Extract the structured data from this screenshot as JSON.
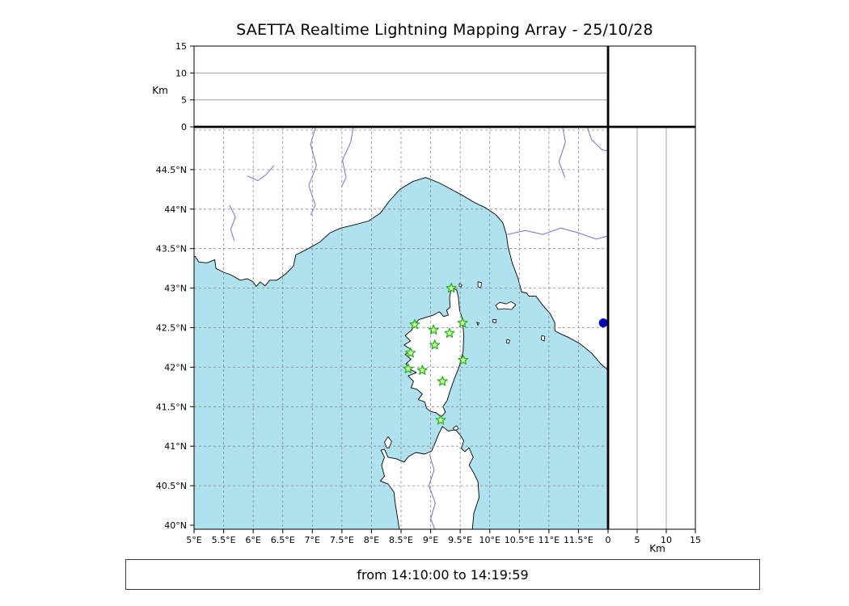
{
  "title": "SAETTA Realtime Lightning Mapping Array - 25/10/28",
  "status_bar": {
    "text": "from 14:10:00 to 14:19:59"
  },
  "colors": {
    "sea": "#b0e1ee",
    "land": "#ffffff",
    "coast": "#000000",
    "grid": "#888888",
    "panel_grid": "#909090",
    "river": "#6f6fd8",
    "station_stroke": "#1db31d",
    "station_fill": "#d6f29a",
    "highlight_point": "#0000b8",
    "frame": "#000000"
  },
  "map_panel": {
    "lat_ticks": [
      {
        "v": 40,
        "label": "40°N"
      },
      {
        "v": 40.5,
        "label": "40.5°N"
      },
      {
        "v": 41,
        "label": "41°N"
      },
      {
        "v": 41.5,
        "label": "41.5°N"
      },
      {
        "v": 42,
        "label": "42°N"
      },
      {
        "v": 42.5,
        "label": "42.5°N"
      },
      {
        "v": 43,
        "label": "43°N"
      },
      {
        "v": 43.5,
        "label": "43.5°N"
      },
      {
        "v": 44,
        "label": "44°N"
      },
      {
        "v": 44.5,
        "label": "44.5°N"
      }
    ],
    "lon_ticks": [
      {
        "v": 5,
        "label": "5°E"
      },
      {
        "v": 5.5,
        "label": "5.5°E"
      },
      {
        "v": 6,
        "label": "6°E"
      },
      {
        "v": 6.5,
        "label": "6.5°E"
      },
      {
        "v": 7,
        "label": "7°E"
      },
      {
        "v": 7.5,
        "label": "7.5°E"
      },
      {
        "v": 8,
        "label": "8°E"
      },
      {
        "v": 8.5,
        "label": "8.5°E"
      },
      {
        "v": 9,
        "label": "9°E"
      },
      {
        "v": 9.5,
        "label": "9.5°E"
      },
      {
        "v": 10,
        "label": "10°E"
      },
      {
        "v": 10.5,
        "label": "10.5°E"
      },
      {
        "v": 11,
        "label": "11°E"
      },
      {
        "v": 11.5,
        "label": "11.5°E"
      }
    ],
    "grid_lon_values": [
      5.5,
      6,
      6.5,
      7,
      7.5,
      8,
      8.5,
      9,
      9.5,
      10,
      10.5,
      11,
      11.5
    ],
    "grid_lat_values": [
      40.5,
      41,
      41.5,
      42,
      42.5,
      43,
      43.5,
      44,
      44.5,
      45
    ]
  },
  "alt_panels": {
    "axis_label": "Km",
    "ticks": [
      {
        "v": 0,
        "label": "0"
      },
      {
        "v": 5,
        "label": "5"
      },
      {
        "v": 10,
        "label": "10"
      },
      {
        "v": 15,
        "label": "15"
      }
    ],
    "gridlines": [
      5,
      10
    ],
    "range": [
      0,
      15
    ]
  },
  "chart_data": {
    "type": "scatter",
    "subtype": "geographic-lightning-map",
    "title": "SAETTA Realtime Lightning Mapping Array - 25/10/28",
    "time_window": "from 14:10:00 to 14:19:59",
    "map_extent": {
      "lon_min": 5.0,
      "lon_max": 12.0,
      "lat_min": 39.95,
      "lat_max": 45.03
    },
    "grid_interval_deg": 0.5,
    "altitude_axis": {
      "label": "Km",
      "range": [
        0,
        15
      ],
      "ticks": [
        0,
        5,
        10,
        15
      ],
      "gridlines": [
        5,
        10
      ]
    },
    "stations": [
      {
        "lon": 9.35,
        "lat": 43.0
      },
      {
        "lon": 8.73,
        "lat": 42.54
      },
      {
        "lon": 9.05,
        "lat": 42.47
      },
      {
        "lon": 9.32,
        "lat": 42.43
      },
      {
        "lon": 9.54,
        "lat": 42.56
      },
      {
        "lon": 9.07,
        "lat": 42.28
      },
      {
        "lon": 8.66,
        "lat": 42.18
      },
      {
        "lon": 9.55,
        "lat": 42.09
      },
      {
        "lon": 8.62,
        "lat": 41.98
      },
      {
        "lon": 8.86,
        "lat": 41.96
      },
      {
        "lon": 9.2,
        "lat": 41.82
      },
      {
        "lon": 9.17,
        "lat": 41.33
      }
    ],
    "station_marker": {
      "shape": "star",
      "stroke": "#1db31d",
      "fill": "#d6f29a"
    },
    "highlight_point": {
      "lon": 11.92,
      "lat": 42.56,
      "color": "#0000b8",
      "shape": "circle"
    },
    "lightning_sources": []
  }
}
